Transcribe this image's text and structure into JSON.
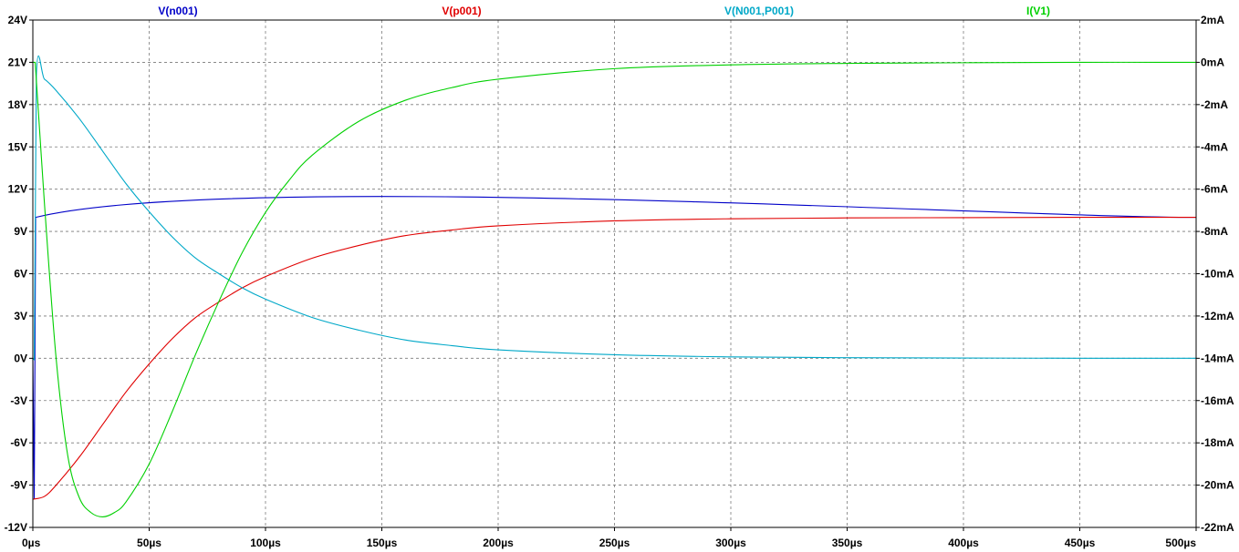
{
  "chart_data": {
    "type": "line",
    "x_ticks": [
      "0µs",
      "50µs",
      "100µs",
      "150µs",
      "200µs",
      "250µs",
      "300µs",
      "350µs",
      "400µs",
      "450µs",
      "500µs"
    ],
    "y_left_ticks": [
      "24V",
      "21V",
      "18V",
      "15V",
      "12V",
      "9V",
      "6V",
      "3V",
      "0V",
      "-3V",
      "-6V",
      "-9V",
      "-12V"
    ],
    "y_right_ticks": [
      "2mA",
      "0mA",
      "-2mA",
      "-4mA",
      "-6mA",
      "-8mA",
      "-10mA",
      "-12mA",
      "-14mA",
      "-16mA",
      "-18mA",
      "-20mA",
      "-22mA"
    ],
    "xlim": [
      0,
      500
    ],
    "ylim_left": [
      -12,
      24
    ],
    "ylim_right": [
      -22,
      2
    ],
    "grid": true,
    "series": [
      {
        "name": "V(n001)",
        "color": "#0000c8",
        "axis": "left",
        "x": [
          0,
          0.6,
          1.2,
          500
        ],
        "y": [
          0,
          -10,
          10,
          10
        ]
      },
      {
        "name": "V(p001)",
        "color": "#e00000",
        "axis": "left",
        "x": [
          0,
          5,
          10,
          20,
          30,
          40,
          50,
          60,
          70,
          80,
          90,
          100,
          120,
          140,
          160,
          180,
          200,
          250,
          300,
          350,
          400,
          450,
          500
        ],
        "y": [
          -10,
          -9.8,
          -9.0,
          -7.0,
          -4.7,
          -2.4,
          -0.4,
          1.4,
          2.9,
          4.0,
          5.0,
          5.8,
          7.1,
          8.0,
          8.7,
          9.1,
          9.4,
          9.75,
          9.9,
          9.96,
          9.98,
          10,
          10
        ]
      },
      {
        "name": "V(N001,P001)",
        "color": "#00a8c8",
        "axis": "left",
        "x": [
          0,
          0.6,
          1.5,
          5,
          10,
          20,
          30,
          40,
          50,
          60,
          70,
          80,
          90,
          100,
          120,
          140,
          160,
          180,
          200,
          250,
          300,
          350,
          400,
          450,
          500
        ],
        "y": [
          0,
          -0.1,
          20,
          19.8,
          19.0,
          17.0,
          14.7,
          12.4,
          10.4,
          8.6,
          7.1,
          6.0,
          5.0,
          4.2,
          2.9,
          2.0,
          1.3,
          0.9,
          0.6,
          0.25,
          0.1,
          0.04,
          0.02,
          0,
          0
        ]
      },
      {
        "name": "I(V1)",
        "color": "#00d000",
        "axis": "right",
        "x": [
          0,
          1,
          5,
          10,
          15,
          20,
          25,
          30,
          35,
          40,
          50,
          60,
          70,
          80,
          90,
          100,
          110,
          120,
          140,
          160,
          180,
          200,
          250,
          300,
          350,
          400,
          450,
          500
        ],
        "y": [
          0,
          0,
          -6.7,
          -14.0,
          -18.6,
          -20.6,
          -21.3,
          -21.5,
          -21.3,
          -20.8,
          -19.0,
          -16.5,
          -13.8,
          -11.3,
          -9.0,
          -7.1,
          -5.6,
          -4.4,
          -2.8,
          -1.8,
          -1.2,
          -0.8,
          -0.3,
          -0.12,
          -0.05,
          -0.02,
          0,
          0
        ]
      }
    ]
  }
}
